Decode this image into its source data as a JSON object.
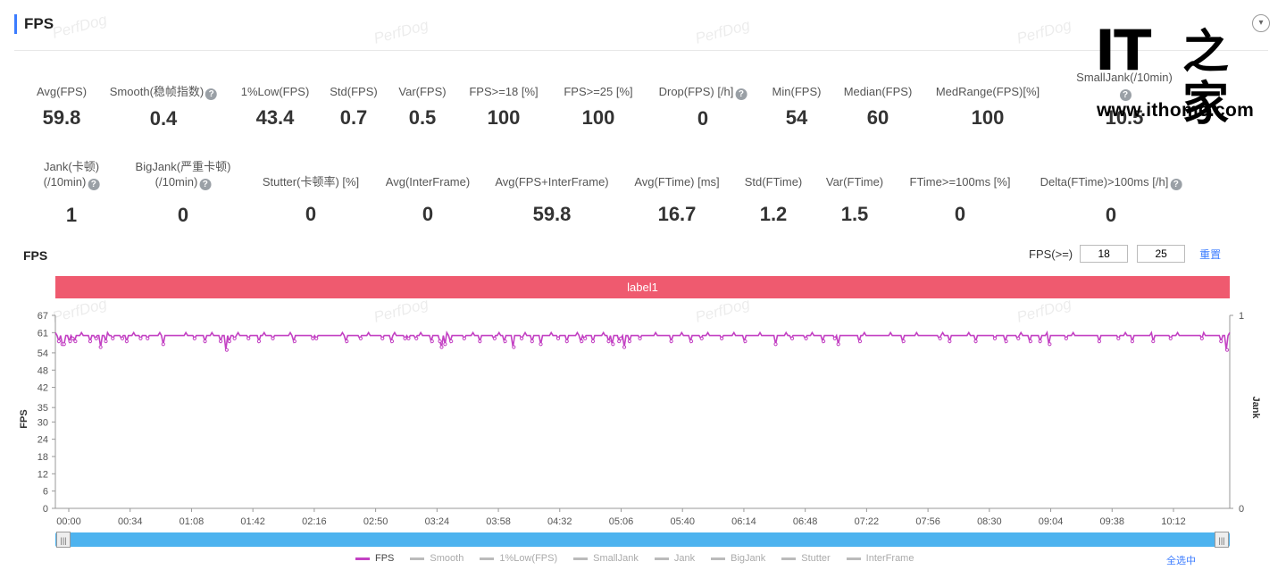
{
  "header": {
    "title": "FPS"
  },
  "watermark": "PerfDog",
  "logo": {
    "it": "IT",
    "cn": "之家",
    "url": "www.ithome.com"
  },
  "stats_row1": [
    {
      "label": "Avg(FPS)",
      "value": "59.8",
      "help": false
    },
    {
      "label": "Smooth(稳帧指数)",
      "value": "0.4",
      "help": true
    },
    {
      "label": "1%Low(FPS)",
      "value": "43.4",
      "help": false
    },
    {
      "label": "Std(FPS)",
      "value": "0.7",
      "help": false
    },
    {
      "label": "Var(FPS)",
      "value": "0.5",
      "help": false
    },
    {
      "label": "FPS>=18 [%]",
      "value": "100",
      "help": false
    },
    {
      "label": "FPS>=25 [%]",
      "value": "100",
      "help": false
    },
    {
      "label": "Drop(FPS) [/h]",
      "value": "0",
      "help": true
    },
    {
      "label": "Min(FPS)",
      "value": "54",
      "help": false
    },
    {
      "label": "Median(FPS)",
      "value": "60",
      "help": false
    },
    {
      "label": "MedRange(FPS)[%]",
      "value": "100",
      "help": false
    },
    {
      "label": "SmallJank(/10min)",
      "value": "10.5",
      "help": true
    }
  ],
  "stats_row2": [
    {
      "label": "Jank(卡顿)",
      "label2": "(/10min)",
      "value": "1",
      "help": true
    },
    {
      "label": "BigJank(严重卡顿)",
      "label2": "(/10min)",
      "value": "0",
      "help": true
    },
    {
      "label": "Stutter(卡顿率) [%]",
      "value": "0",
      "help": false
    },
    {
      "label": "Avg(InterFrame)",
      "value": "0",
      "help": false
    },
    {
      "label": "Avg(FPS+InterFrame)",
      "value": "59.8",
      "help": false
    },
    {
      "label": "Avg(FTime) [ms]",
      "value": "16.7",
      "help": false
    },
    {
      "label": "Std(FTime)",
      "value": "1.2",
      "help": false
    },
    {
      "label": "Var(FTime)",
      "value": "1.5",
      "help": false
    },
    {
      "label": "FTime>=100ms [%]",
      "value": "0",
      "help": false
    },
    {
      "label": "Delta(FTime)>100ms [/h]",
      "value": "0",
      "help": true
    }
  ],
  "chart_section": {
    "title": "FPS",
    "fps_filter_label": "FPS(>=)",
    "fps_filter_values": [
      "18",
      "25"
    ],
    "reset_label": "重置",
    "band_label": "label1",
    "select_all_label": "全选中"
  },
  "colors": {
    "accent": "#3b7cff",
    "band": "#ef5a6f",
    "fps_line": "#c341c3",
    "slider": "#4db3ef"
  },
  "chart_data": {
    "type": "line",
    "title": "",
    "ylabel": "FPS",
    "y2label": "Jank",
    "ylim": [
      0,
      67
    ],
    "yticks": [
      0,
      6,
      12,
      18,
      24,
      30,
      35,
      42,
      48,
      54,
      61,
      67
    ],
    "y2ticks": [
      0,
      1
    ],
    "xlabel": "",
    "xlim": [
      0,
      650
    ],
    "xticks": [
      "00:00",
      "00:34",
      "01:08",
      "01:42",
      "02:16",
      "02:50",
      "03:24",
      "03:58",
      "04:32",
      "05:06",
      "05:40",
      "06:14",
      "06:48",
      "07:22",
      "07:56",
      "08:30",
      "09:04",
      "09:38",
      "10:12"
    ],
    "legend": [
      "FPS",
      "Smooth",
      "1%Low(FPS)",
      "SmallJank",
      "Jank",
      "BigJank",
      "Stutter",
      "InterFrame"
    ],
    "legend_position": "bottom",
    "series": [
      {
        "name": "FPS",
        "baseline": 60,
        "dips": [
          [
            4,
            58
          ],
          [
            8,
            57
          ],
          [
            10,
            57
          ],
          [
            17,
            58
          ],
          [
            20,
            59
          ],
          [
            23,
            58
          ],
          [
            40,
            58
          ],
          [
            47,
            59
          ],
          [
            52,
            56
          ],
          [
            58,
            58
          ],
          [
            66,
            59
          ],
          [
            77,
            59
          ],
          [
            82,
            58
          ],
          [
            98,
            59
          ],
          [
            106,
            59
          ],
          [
            124,
            57
          ],
          [
            160,
            59
          ],
          [
            172,
            58
          ],
          [
            190,
            58
          ],
          [
            197,
            55
          ],
          [
            200,
            58
          ],
          [
            206,
            59
          ],
          [
            222,
            59
          ],
          [
            234,
            58
          ],
          [
            250,
            59
          ],
          [
            275,
            58
          ],
          [
            296,
            59
          ],
          [
            300,
            59
          ],
          [
            335,
            58
          ],
          [
            351,
            59
          ],
          [
            376,
            59
          ],
          [
            387,
            58
          ],
          [
            402,
            59
          ],
          [
            406,
            59
          ],
          [
            415,
            59
          ],
          [
            433,
            58
          ],
          [
            442,
            58
          ],
          [
            444,
            56
          ],
          [
            448,
            57
          ],
          [
            455,
            58
          ],
          [
            470,
            59
          ],
          [
            488,
            58
          ],
          [
            505,
            59
          ],
          [
            517,
            58
          ],
          [
            527,
            56
          ],
          [
            536,
            59
          ],
          [
            548,
            58
          ],
          [
            558,
            57
          ],
          [
            578,
            59
          ],
          [
            588,
            58
          ],
          [
            605,
            58
          ],
          [
            609,
            59
          ],
          [
            618,
            58
          ],
          [
            636,
            58
          ],
          [
            641,
            57
          ],
          [
            648,
            58
          ],
          [
            650,
            59
          ],
          [
            654,
            56
          ],
          [
            660,
            58
          ],
          [
            672,
            59
          ],
          [
            708,
            58
          ],
          [
            731,
            58
          ],
          [
            743,
            59
          ],
          [
            766,
            59
          ],
          [
            793,
            58
          ],
          [
            828,
            57
          ],
          [
            847,
            59
          ],
          [
            863,
            59
          ],
          [
            883,
            58
          ],
          [
            896,
            59
          ],
          [
            900,
            57
          ],
          [
            925,
            58
          ],
          [
            975,
            58
          ],
          [
            1017,
            59
          ],
          [
            1028,
            58
          ],
          [
            1058,
            58
          ],
          [
            1080,
            59
          ],
          [
            1093,
            58
          ],
          [
            1107,
            59
          ],
          [
            1121,
            58
          ],
          [
            1132,
            58
          ],
          [
            1143,
            57
          ],
          [
            1162,
            59
          ],
          [
            1200,
            58
          ],
          [
            1222,
            59
          ],
          [
            1238,
            58
          ],
          [
            1262,
            58
          ],
          [
            1282,
            59
          ],
          [
            1318,
            59
          ],
          [
            1340,
            58
          ],
          [
            1347,
            55
          ]
        ]
      }
    ]
  }
}
